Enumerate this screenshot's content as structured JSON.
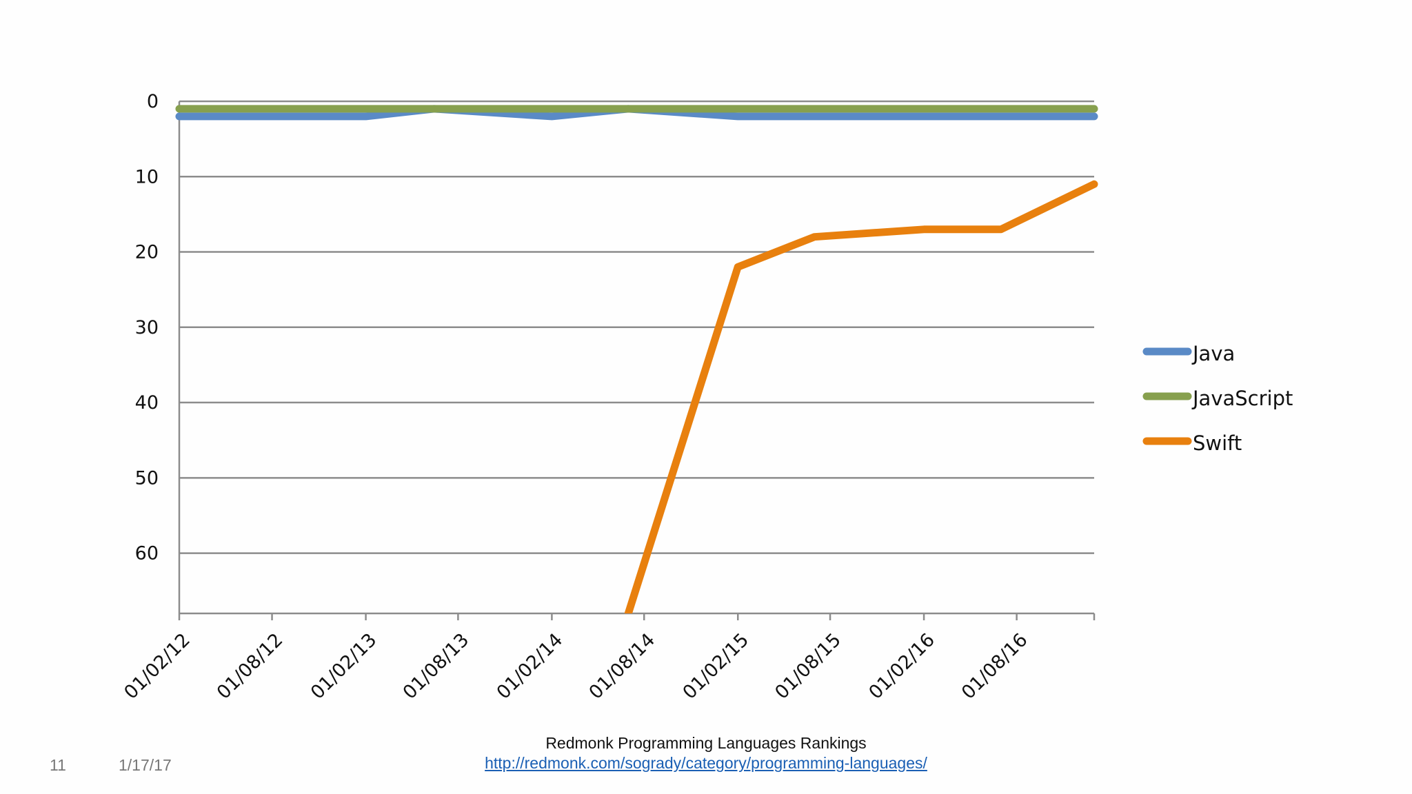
{
  "chart_data": {
    "type": "line",
    "title": "",
    "xlabel": "",
    "ylabel": "",
    "y_inverted": true,
    "ylim": [
      0,
      68
    ],
    "yticks": [
      0,
      10,
      20,
      30,
      40,
      50,
      60
    ],
    "xlim": [
      "2012-02-01",
      "2016-12-31"
    ],
    "x_tick_labels": [
      "01/02/12",
      "01/08/12",
      "01/02/13",
      "01/08/13",
      "01/02/14",
      "01/08/14",
      "01/02/15",
      "01/08/15",
      "01/02/16",
      "01/08/16"
    ],
    "x_tick_dates": [
      "2012-02-01",
      "2012-08-01",
      "2013-02-01",
      "2013-08-01",
      "2014-02-01",
      "2014-08-01",
      "2015-02-01",
      "2015-08-01",
      "2016-02-01",
      "2016-08-01"
    ],
    "grid": true,
    "legend_position": "right",
    "series": [
      {
        "name": "Java",
        "color": "#5a8ac6",
        "points": [
          {
            "x": "2012-02-01",
            "y": 2
          },
          {
            "x": "2013-02-01",
            "y": 2
          },
          {
            "x": "2013-06-15",
            "y": 1
          },
          {
            "x": "2014-02-01",
            "y": 2
          },
          {
            "x": "2014-07-01",
            "y": 1
          },
          {
            "x": "2015-02-01",
            "y": 2
          },
          {
            "x": "2016-12-31",
            "y": 2
          }
        ]
      },
      {
        "name": "JavaScript",
        "color": "#87a04e",
        "points": [
          {
            "x": "2012-02-01",
            "y": 1
          },
          {
            "x": "2016-12-31",
            "y": 1
          }
        ]
      },
      {
        "name": "Swift",
        "color": "#e8800e",
        "points": [
          {
            "x": "2014-07-01",
            "y": 68
          },
          {
            "x": "2015-02-01",
            "y": 22
          },
          {
            "x": "2015-07-01",
            "y": 18
          },
          {
            "x": "2016-02-01",
            "y": 17
          },
          {
            "x": "2016-07-01",
            "y": 17
          },
          {
            "x": "2016-12-31",
            "y": 11
          }
        ]
      }
    ]
  },
  "footer": {
    "title": "Redmonk Programming Languages Rankings",
    "link": "http://redmonk.com/sogrady/category/programming-languages/",
    "slide_number": "11",
    "date": "1/17/17"
  }
}
